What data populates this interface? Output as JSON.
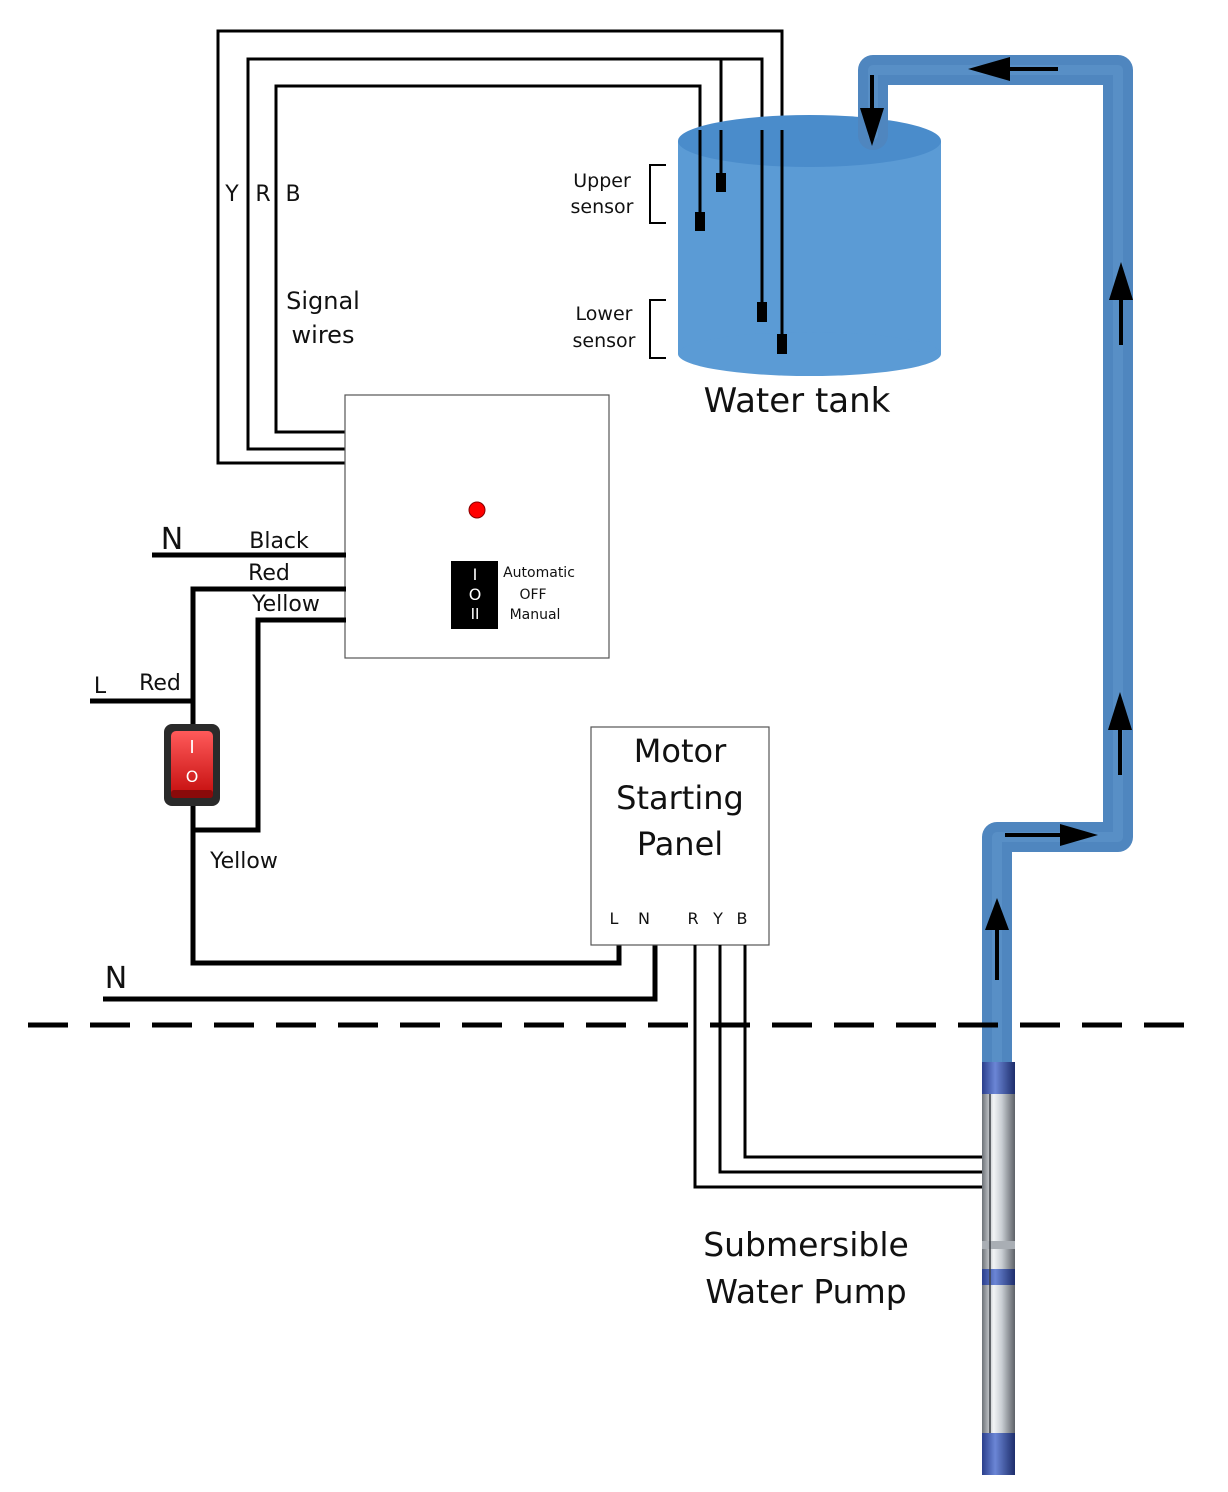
{
  "signal_wires": {
    "letter_y": "Y",
    "letter_r": "R",
    "letter_b": "B",
    "label_line1": "Signal",
    "label_line2": "wires"
  },
  "tank": {
    "label": "Water tank",
    "upper_sensor_line1": "Upper",
    "upper_sensor_line2": "sensor",
    "lower_sensor_line1": "Lower",
    "lower_sensor_line2": "sensor",
    "water_color": "#5b9bd5"
  },
  "controller": {
    "indicator_color": "#ff0000",
    "switch_pos_1": "I",
    "switch_pos_2": "O",
    "switch_pos_3": "II",
    "mode_automatic": "Automatic",
    "mode_off": "OFF",
    "mode_manual": "Manual"
  },
  "supply": {
    "neutral_top": "N",
    "black": "Black",
    "red_top": "Red",
    "yellow_top": "Yellow",
    "live": "L",
    "red_left": "Red",
    "yellow_bottom": "Yellow",
    "neutral_bottom": "N"
  },
  "main_switch": {
    "on_symbol": "I",
    "off_symbol": "O",
    "color": "#e41b1b"
  },
  "motor_panel": {
    "title_line1": "Motor",
    "title_line2": "Starting",
    "title_line3": "Panel",
    "terminal_l": "L",
    "terminal_n": "N",
    "terminal_r": "R",
    "terminal_y": "Y",
    "terminal_b": "B"
  },
  "pump": {
    "label_line1": "Submersible",
    "label_line2": "Water Pump"
  },
  "pipe": {
    "color": "#4f86bf"
  }
}
